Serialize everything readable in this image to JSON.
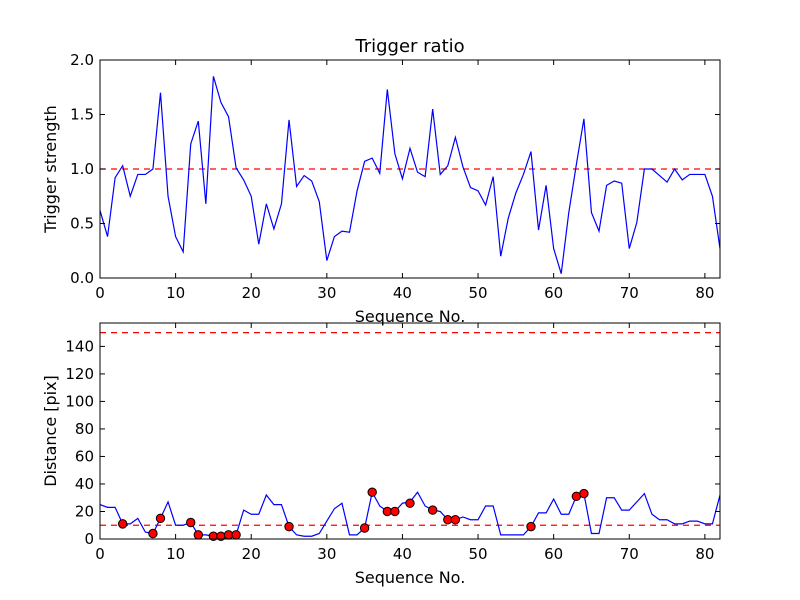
{
  "chart_data": [
    {
      "type": "line",
      "title": "Trigger ratio",
      "xlabel": "Sequence No.",
      "ylabel": "Trigger strength",
      "xlim": [
        0,
        82
      ],
      "ylim": [
        0,
        2.0
      ],
      "xticks": [
        0,
        10,
        20,
        30,
        40,
        50,
        60,
        70,
        80
      ],
      "yticks": [
        "0.0",
        "0.5",
        "1.0",
        "1.5",
        "2.0"
      ],
      "grid": false,
      "series": [
        {
          "color": "#0000ff",
          "x": [
            0,
            1,
            2,
            3,
            4,
            5,
            6,
            7,
            8,
            9,
            10,
            11,
            12,
            13,
            14,
            15,
            16,
            17,
            18,
            19,
            20,
            21,
            22,
            23,
            24,
            25,
            26,
            27,
            28,
            29,
            30,
            31,
            32,
            33,
            34,
            35,
            36,
            37,
            38,
            39,
            40,
            41,
            42,
            43,
            44,
            45,
            46,
            47,
            48,
            49,
            50,
            51,
            52,
            53,
            54,
            55,
            56,
            57,
            58,
            59,
            60,
            61,
            62,
            63,
            64,
            65,
            66,
            67,
            68,
            69,
            70,
            71,
            72,
            73,
            74,
            75,
            76,
            77,
            78,
            79,
            80,
            81,
            82
          ],
          "y": [
            0.62,
            0.38,
            0.92,
            1.03,
            0.75,
            0.95,
            0.95,
            1.0,
            1.7,
            0.75,
            0.38,
            0.24,
            1.23,
            1.44,
            0.68,
            1.85,
            1.61,
            1.48,
            1.01,
            0.9,
            0.75,
            0.31,
            0.68,
            0.45,
            0.68,
            1.45,
            0.84,
            0.94,
            0.89,
            0.7,
            0.16,
            0.38,
            0.43,
            0.42,
            0.8,
            1.07,
            1.1,
            0.96,
            1.73,
            1.14,
            0.91,
            1.19,
            0.97,
            0.93,
            1.55,
            0.95,
            1.03,
            1.29,
            1.02,
            0.83,
            0.8,
            0.67,
            0.93,
            0.2,
            0.55,
            0.78,
            0.95,
            1.16,
            0.44,
            0.85,
            0.27,
            0.04,
            0.6,
            1.04,
            1.46,
            0.6,
            0.43,
            0.85,
            0.89,
            0.87,
            0.27,
            0.51,
            1.0,
            1.0,
            0.94,
            0.88,
            1.0,
            0.9,
            0.95,
            0.95,
            0.95,
            0.75,
            0.27
          ]
        }
      ],
      "reference_lines": [
        {
          "y": 1.0,
          "color": "#ff0000",
          "style": "dashed"
        }
      ]
    },
    {
      "type": "line",
      "title": "",
      "xlabel": "Sequence No.",
      "ylabel": "Distance [pix]",
      "xlim": [
        0,
        82
      ],
      "ylim": [
        0,
        157
      ],
      "xticks": [
        0,
        10,
        20,
        30,
        40,
        50,
        60,
        70,
        80
      ],
      "yticks": [
        0,
        20,
        40,
        60,
        80,
        100,
        120,
        140
      ],
      "grid": false,
      "series": [
        {
          "color": "#0000ff",
          "x": [
            0,
            1,
            2,
            3,
            4,
            5,
            6,
            7,
            8,
            9,
            10,
            11,
            12,
            13,
            14,
            15,
            16,
            17,
            18,
            19,
            20,
            21,
            22,
            23,
            24,
            25,
            26,
            27,
            28,
            29,
            30,
            31,
            32,
            33,
            34,
            35,
            36,
            37,
            38,
            39,
            40,
            41,
            42,
            43,
            44,
            45,
            46,
            47,
            48,
            49,
            50,
            51,
            52,
            53,
            54,
            55,
            56,
            57,
            58,
            59,
            60,
            61,
            62,
            63,
            64,
            65,
            66,
            67,
            68,
            69,
            70,
            71,
            72,
            73,
            74,
            75,
            76,
            77,
            78,
            79,
            80,
            81,
            82
          ],
          "y": [
            25,
            23,
            23,
            11,
            11,
            15,
            5,
            4,
            15,
            27,
            10,
            10,
            12,
            3,
            3,
            2,
            2,
            3,
            3,
            21,
            18,
            18,
            32,
            25,
            25,
            9,
            3,
            2,
            2,
            4,
            13,
            22,
            26,
            3,
            3,
            8,
            34,
            24,
            20,
            20,
            26,
            27,
            34,
            24,
            21,
            20,
            14,
            14,
            16,
            14,
            14,
            24,
            24,
            3,
            3,
            3,
            3,
            9,
            19,
            19,
            29,
            18,
            18,
            31,
            33,
            4,
            4,
            30,
            30,
            21,
            21,
            27,
            33,
            18,
            14,
            14,
            11,
            11,
            13,
            13,
            11,
            11,
            32
          ]
        },
        {
          "color": "#ff0000",
          "marker": "circle",
          "x": [
            3,
            7,
            8,
            12,
            13,
            15,
            16,
            17,
            18,
            25,
            35,
            36,
            38,
            39,
            41,
            44,
            46,
            47,
            57,
            63,
            64
          ],
          "y": [
            11,
            4,
            15,
            12,
            3,
            2,
            2,
            3,
            3,
            9,
            8,
            34,
            20,
            20,
            26,
            21,
            14,
            14,
            9,
            31,
            33
          ]
        }
      ],
      "reference_lines": [
        {
          "y": 150,
          "color": "#ff0000",
          "style": "dashed"
        },
        {
          "y": 10,
          "color": "#ff0000",
          "style": "dashed"
        }
      ]
    }
  ]
}
